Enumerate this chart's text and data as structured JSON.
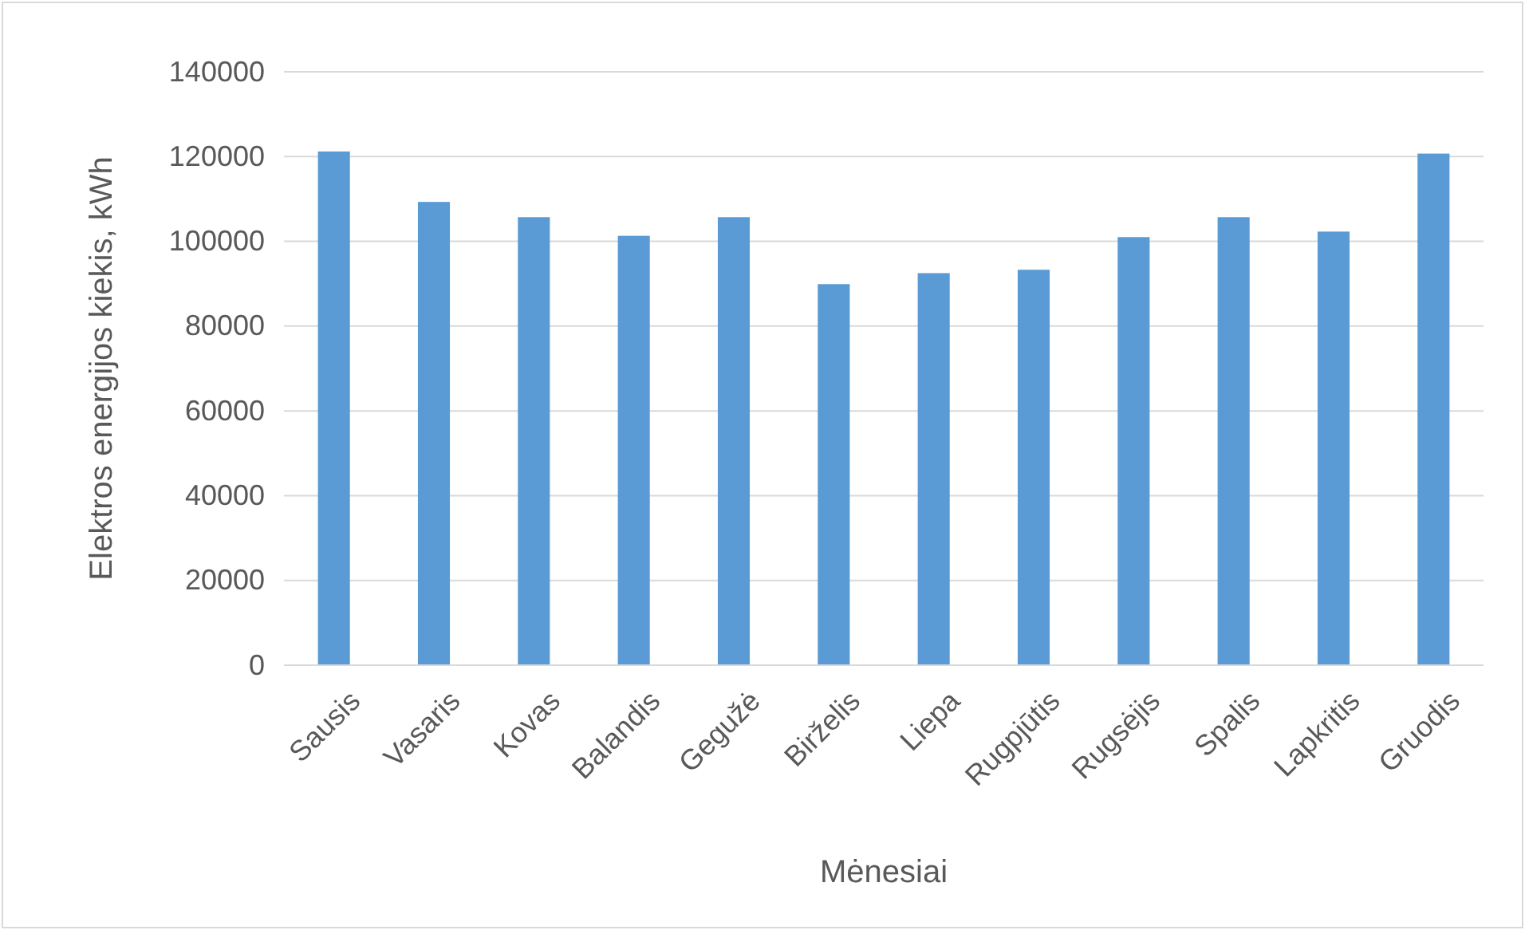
{
  "chart_data": {
    "type": "bar",
    "xlabel": "Mėnesiai",
    "ylabel": "Elektros energijos kiekis, kWh",
    "categories": [
      "Sausis",
      "Vasaris",
      "Kovas",
      "Balandis",
      "Gegužė",
      "Birželis",
      "Liepa",
      "Rugpjūtis",
      "Rugsėjis",
      "Spalis",
      "Lapkritis",
      "Gruodis"
    ],
    "values": [
      121200,
      109300,
      105700,
      101300,
      105700,
      89900,
      92500,
      93300,
      101000,
      105700,
      102300,
      120700
    ],
    "color": "#5b9bd5",
    "ylim": [
      0,
      140000
    ],
    "yticks": [
      0,
      20000,
      40000,
      60000,
      80000,
      100000,
      120000,
      140000
    ],
    "grid": "y"
  }
}
